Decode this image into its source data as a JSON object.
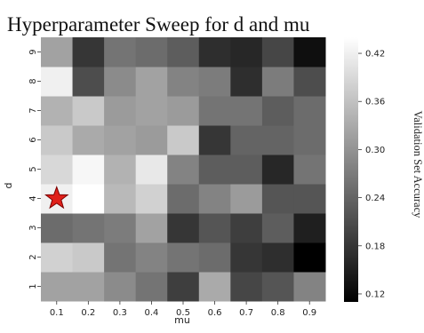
{
  "chart_data": {
    "type": "heatmap",
    "title": "Hyperparameter Sweep for d and mu",
    "xlabel": "mu",
    "ylabel": "d",
    "x_categories": [
      "0.1",
      "0.2",
      "0.3",
      "0.4",
      "0.5",
      "0.6",
      "0.7",
      "0.8",
      "0.9"
    ],
    "y_categories": [
      "1",
      "2",
      "3",
      "4",
      "5",
      "6",
      "7",
      "8",
      "9"
    ],
    "colorbar": {
      "label": "Validation Set Accuracy",
      "range": [
        0.11,
        0.44
      ],
      "ticks": [
        "0.12",
        "0.18",
        "0.24",
        "0.30",
        "0.36",
        "0.42"
      ],
      "colormap": "grayscale"
    },
    "values": [
      [
        0.32,
        0.32,
        0.29,
        0.26,
        0.19,
        0.33,
        0.2,
        0.22,
        0.28
      ],
      [
        0.38,
        0.37,
        0.26,
        0.28,
        0.26,
        0.25,
        0.18,
        0.17,
        0.11
      ],
      [
        0.25,
        0.26,
        0.27,
        0.32,
        0.18,
        0.22,
        0.19,
        0.23,
        0.15
      ],
      [
        0.42,
        0.44,
        0.35,
        0.38,
        0.25,
        0.28,
        0.31,
        0.22,
        0.22
      ],
      [
        0.39,
        0.43,
        0.34,
        0.41,
        0.28,
        0.23,
        0.23,
        0.16,
        0.26
      ],
      [
        0.37,
        0.33,
        0.32,
        0.31,
        0.37,
        0.18,
        0.24,
        0.24,
        0.25
      ],
      [
        0.34,
        0.37,
        0.31,
        0.32,
        0.31,
        0.26,
        0.26,
        0.23,
        0.25
      ],
      [
        0.42,
        0.21,
        0.29,
        0.32,
        0.28,
        0.27,
        0.17,
        0.27,
        0.21
      ],
      [
        0.32,
        0.18,
        0.26,
        0.25,
        0.23,
        0.17,
        0.16,
        0.2,
        0.13
      ]
    ],
    "marker": {
      "x": "0.1",
      "y": "4",
      "shape": "star",
      "color": "#e0201a"
    }
  }
}
